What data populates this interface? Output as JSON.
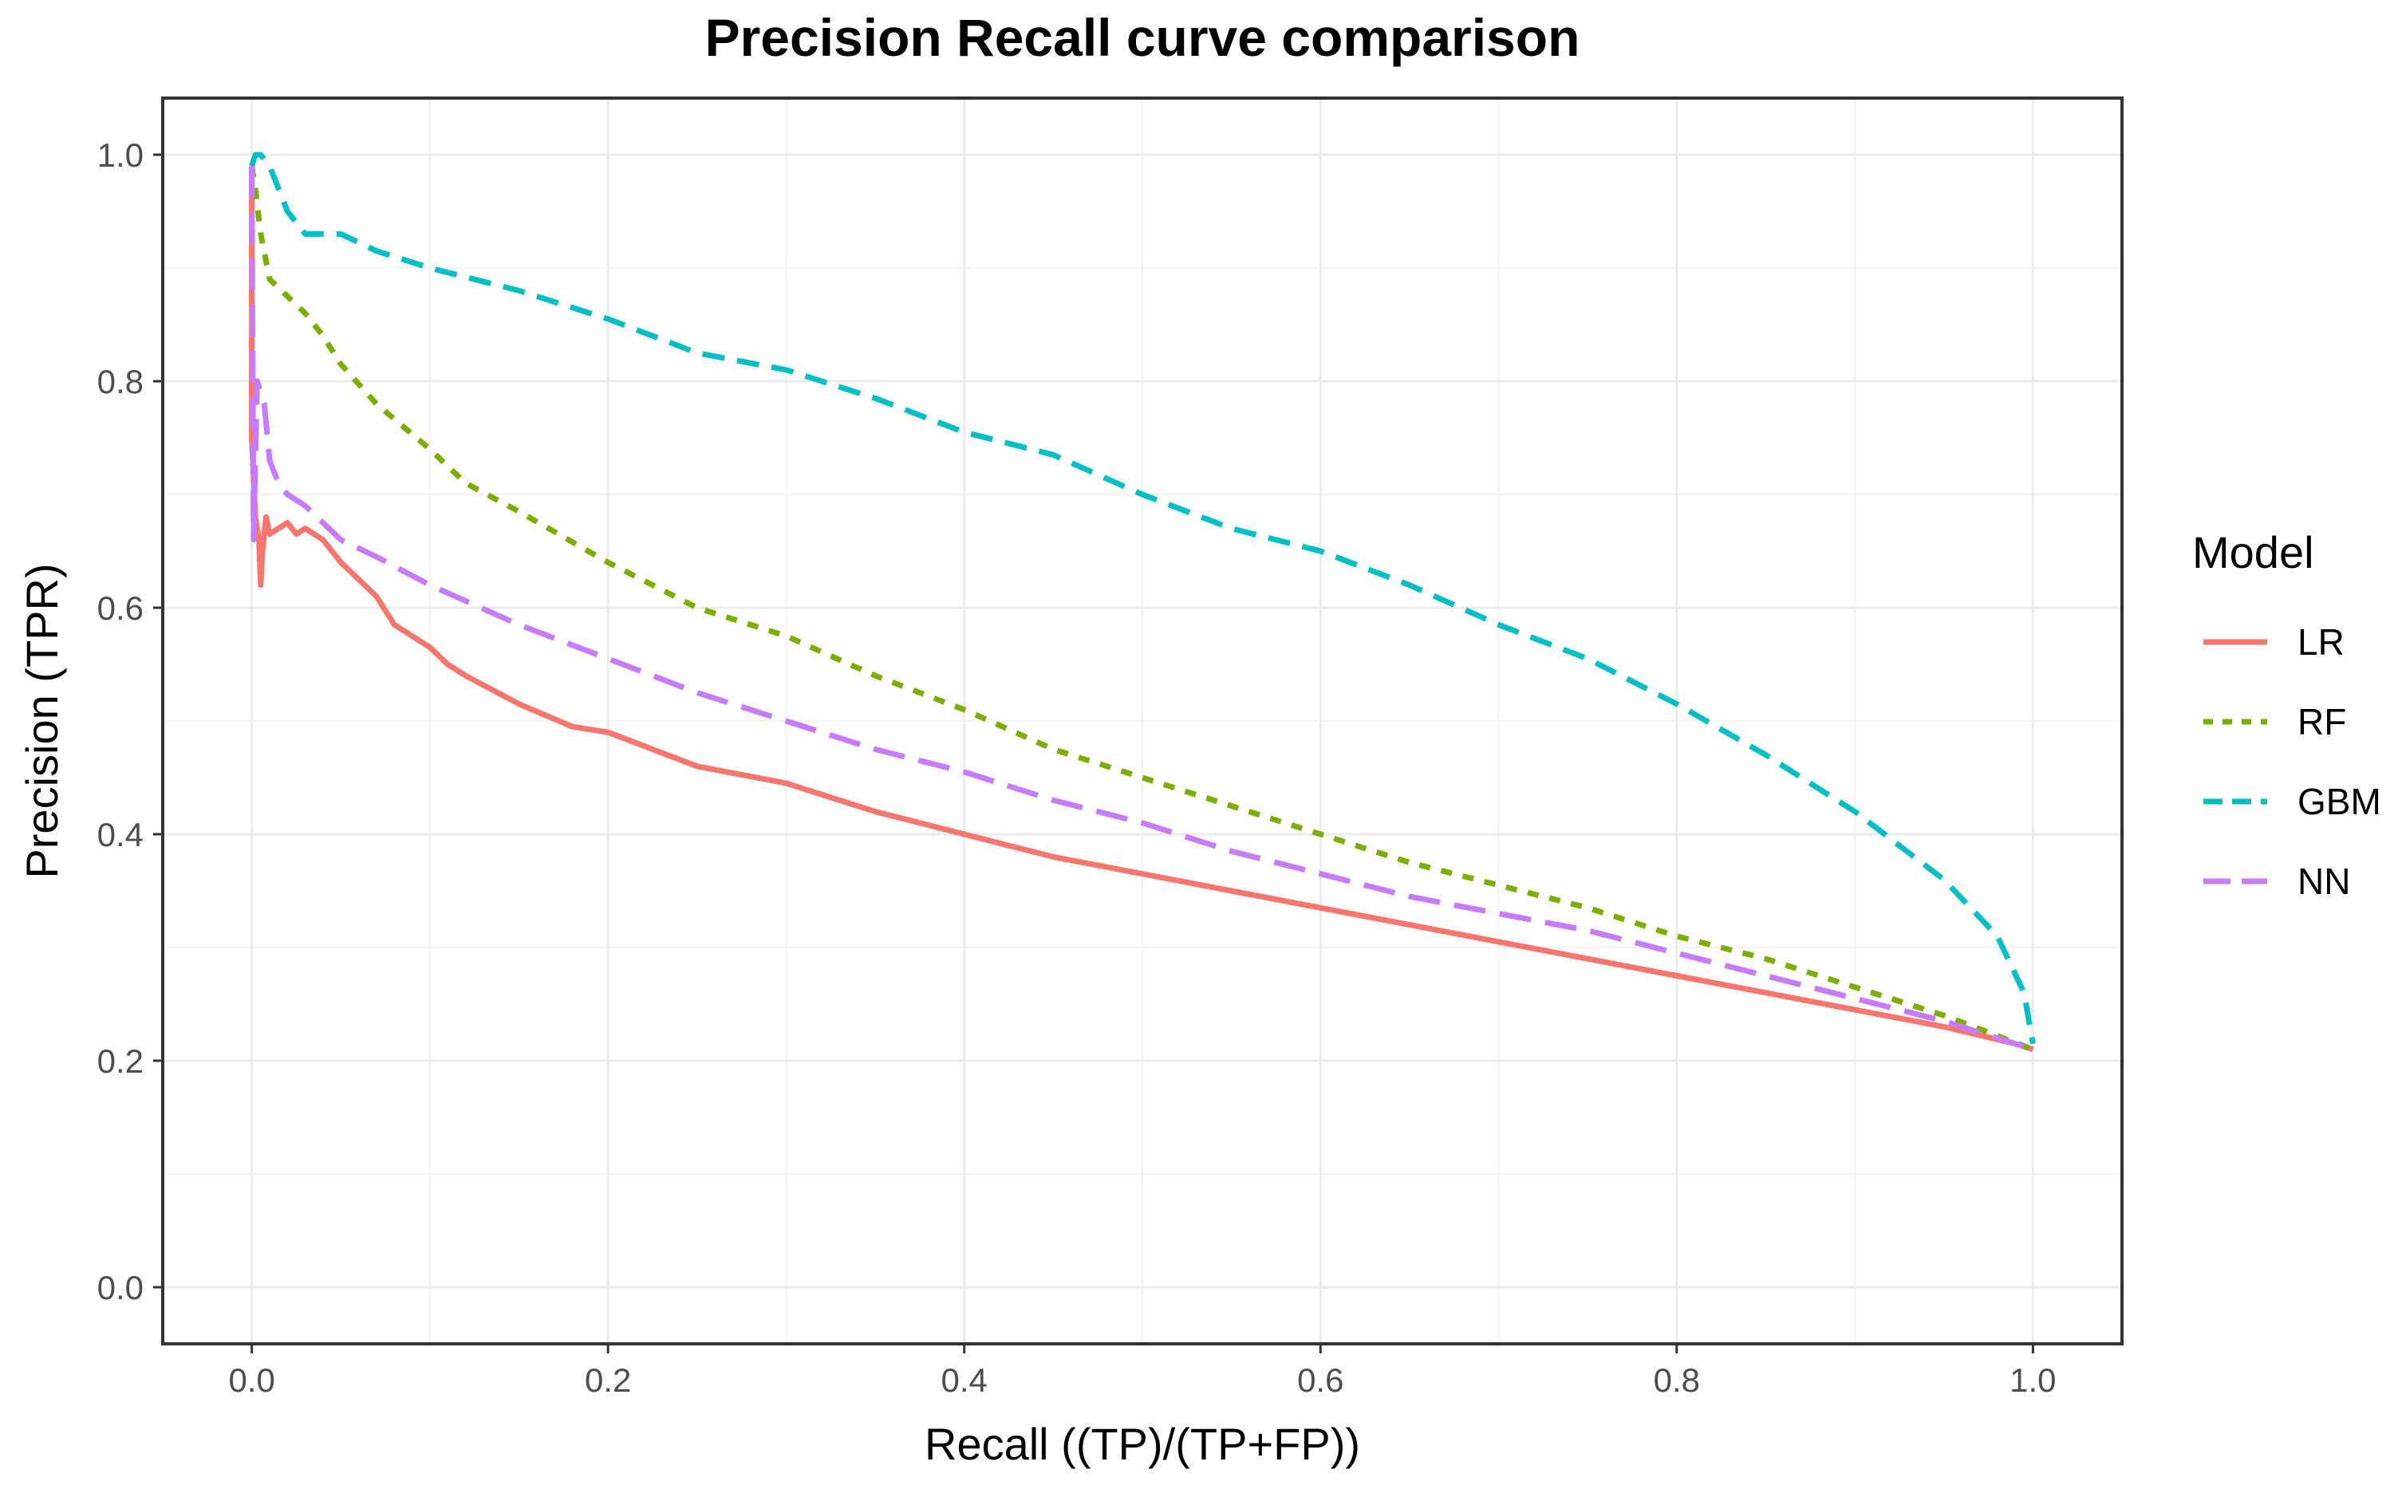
{
  "chart_data": {
    "type": "line",
    "title": "Precision Recall curve comparison",
    "xlabel": "Recall ((TP)/(TP+FP))",
    "ylabel": "Precision (TPR)",
    "xlim": [
      0,
      1
    ],
    "ylim": [
      0,
      1
    ],
    "x_ticks": [
      "0.0",
      "0.2",
      "0.4",
      "0.6",
      "0.8",
      "1.0"
    ],
    "y_ticks": [
      "0.0",
      "0.2",
      "0.4",
      "0.6",
      "0.8",
      "1.0"
    ],
    "grid": true,
    "legend": {
      "title": "Model",
      "position": "right"
    },
    "series": [
      {
        "name": "LR",
        "color": "#F8766D",
        "dash": "solid",
        "x": [
          0.0,
          0.0,
          0.002,
          0.004,
          0.005,
          0.006,
          0.008,
          0.01,
          0.015,
          0.02,
          0.025,
          0.03,
          0.035,
          0.04,
          0.05,
          0.06,
          0.07,
          0.08,
          0.09,
          0.1,
          0.11,
          0.12,
          0.15,
          0.18,
          0.2,
          0.25,
          0.3,
          0.35,
          0.4,
          0.45,
          0.5,
          0.55,
          0.6,
          0.65,
          0.7,
          0.75,
          0.8,
          0.85,
          0.9,
          0.95,
          0.99,
          1.0
        ],
        "y": [
          0.99,
          0.75,
          0.68,
          0.66,
          0.62,
          0.65,
          0.68,
          0.665,
          0.67,
          0.675,
          0.665,
          0.67,
          0.665,
          0.66,
          0.64,
          0.625,
          0.61,
          0.585,
          0.575,
          0.565,
          0.55,
          0.54,
          0.515,
          0.495,
          0.49,
          0.46,
          0.445,
          0.42,
          0.4,
          0.38,
          0.365,
          0.35,
          0.335,
          0.32,
          0.305,
          0.29,
          0.275,
          0.26,
          0.245,
          0.23,
          0.215,
          0.21
        ]
      },
      {
        "name": "RF",
        "color": "#7CAE00",
        "dash": "dotted",
        "x": [
          0.0,
          0.002,
          0.005,
          0.01,
          0.02,
          0.03,
          0.04,
          0.05,
          0.07,
          0.1,
          0.12,
          0.15,
          0.2,
          0.25,
          0.3,
          0.35,
          0.4,
          0.45,
          0.5,
          0.55,
          0.6,
          0.65,
          0.7,
          0.75,
          0.8,
          0.85,
          0.9,
          0.95,
          1.0
        ],
        "y": [
          0.99,
          0.97,
          0.93,
          0.89,
          0.875,
          0.86,
          0.84,
          0.815,
          0.78,
          0.74,
          0.71,
          0.685,
          0.64,
          0.6,
          0.575,
          0.54,
          0.51,
          0.475,
          0.45,
          0.425,
          0.4,
          0.375,
          0.355,
          0.335,
          0.31,
          0.29,
          0.265,
          0.24,
          0.21
        ]
      },
      {
        "name": "GBM",
        "color": "#00BFC4",
        "dash": "dashed",
        "x": [
          0.0,
          0.002,
          0.005,
          0.01,
          0.02,
          0.03,
          0.05,
          0.07,
          0.1,
          0.15,
          0.2,
          0.25,
          0.3,
          0.35,
          0.4,
          0.45,
          0.5,
          0.55,
          0.6,
          0.65,
          0.7,
          0.75,
          0.8,
          0.85,
          0.9,
          0.95,
          0.98,
          0.995,
          1.0
        ],
        "y": [
          0.99,
          1.0,
          1.0,
          0.99,
          0.95,
          0.93,
          0.93,
          0.915,
          0.9,
          0.88,
          0.855,
          0.825,
          0.81,
          0.785,
          0.755,
          0.735,
          0.7,
          0.67,
          0.65,
          0.62,
          0.585,
          0.555,
          0.515,
          0.47,
          0.42,
          0.36,
          0.31,
          0.26,
          0.215
        ]
      },
      {
        "name": "NN",
        "color": "#C77CFF",
        "dash": "longdash",
        "x": [
          0.0,
          0.001,
          0.003,
          0.005,
          0.007,
          0.01,
          0.015,
          0.02,
          0.03,
          0.05,
          0.07,
          0.1,
          0.15,
          0.2,
          0.25,
          0.3,
          0.35,
          0.4,
          0.45,
          0.5,
          0.55,
          0.6,
          0.65,
          0.7,
          0.75,
          0.8,
          0.85,
          0.9,
          0.95,
          1.0
        ],
        "y": [
          0.99,
          0.66,
          0.8,
          0.79,
          0.78,
          0.73,
          0.71,
          0.7,
          0.69,
          0.66,
          0.645,
          0.62,
          0.585,
          0.555,
          0.525,
          0.5,
          0.475,
          0.455,
          0.43,
          0.41,
          0.385,
          0.365,
          0.345,
          0.33,
          0.315,
          0.295,
          0.275,
          0.255,
          0.235,
          0.21
        ]
      }
    ]
  }
}
